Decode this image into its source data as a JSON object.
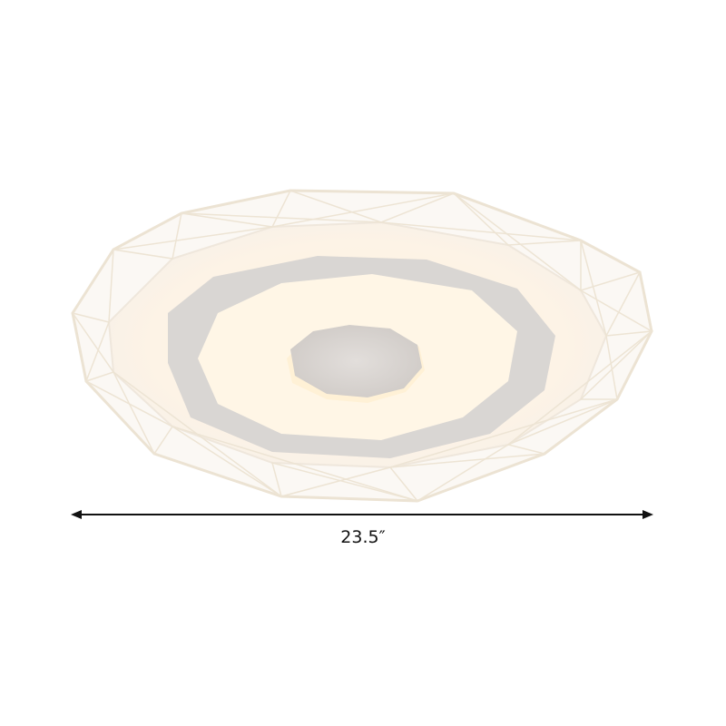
{
  "product": {
    "width_label": "23.5″"
  },
  "colors": {
    "frame": "#f3ead9",
    "glow": "#fff4e2",
    "ring": "#d6d3d1",
    "dimension_line": "#111111"
  }
}
